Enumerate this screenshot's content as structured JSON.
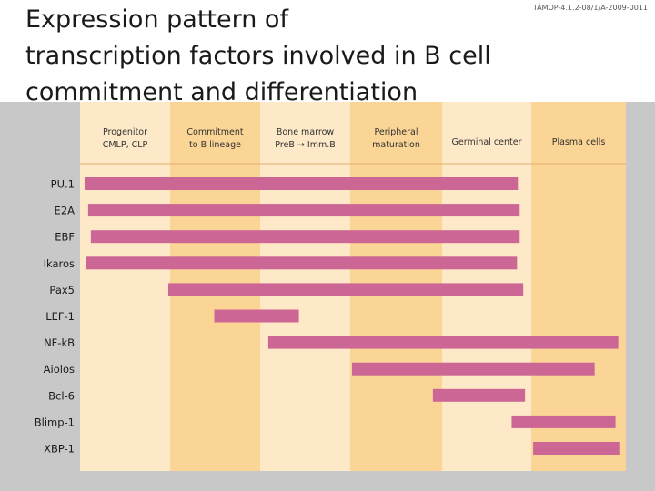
{
  "header": {
    "title_lines": [
      "Expression pattern of",
      "transcription factors involved in B cell",
      "commitment and differentiation"
    ],
    "reference": "TÁMOP-4.1.2-08/1/A-2009-0011"
  },
  "colors": {
    "bar": "#cc6695",
    "stage_light": "#fde9c7",
    "stage_dark": "#fbd595",
    "band": "#c8c8c8"
  },
  "chart_data": {
    "type": "bar",
    "orientation": "horizontal-range",
    "title": "Expression pattern of transcription factors involved in B cell commitment and differentiation",
    "stages": [
      {
        "label_lines": [
          "Progenitor",
          "CMLP, CLP"
        ]
      },
      {
        "label_lines": [
          "Commitment",
          "to B lineage"
        ]
      },
      {
        "label_lines": [
          "Bone marrow",
          "PreB → Imm.B"
        ]
      },
      {
        "label_lines": [
          "Peripheral",
          "maturation"
        ]
      },
      {
        "label_lines": [
          "Germinal center"
        ]
      },
      {
        "label_lines": [
          "Plasma cells"
        ]
      }
    ],
    "xlim": [
      0,
      6
    ],
    "factors": [
      {
        "name": "PU.1",
        "start": 0.05,
        "end": 4.85
      },
      {
        "name": "E2A",
        "start": 0.09,
        "end": 4.87
      },
      {
        "name": "EBF",
        "start": 0.12,
        "end": 4.87
      },
      {
        "name": "Ikaros",
        "start": 0.07,
        "end": 4.84
      },
      {
        "name": "Pax5",
        "start": 0.98,
        "end": 4.91
      },
      {
        "name": "LEF-1",
        "start": 1.49,
        "end": 2.43
      },
      {
        "name": "NF-kB",
        "start": 2.09,
        "end": 5.92
      },
      {
        "name": "Aiolos",
        "start": 3.02,
        "end": 5.67
      },
      {
        "name": "Bcl-6",
        "start": 3.9,
        "end": 4.93
      },
      {
        "name": "Blimp-1",
        "start": 4.78,
        "end": 5.89
      },
      {
        "name": "XBP-1",
        "start": 5.02,
        "end": 5.93
      }
    ]
  }
}
